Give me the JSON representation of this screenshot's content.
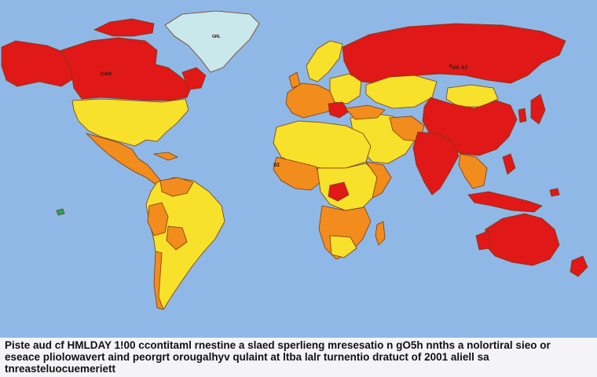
{
  "colors": {
    "ocean": "#8fb8e6",
    "high": "#e01818",
    "medium": "#f28c1c",
    "low": "#f7e12a",
    "none": "#c8e8ec",
    "border": "#7a3a10"
  },
  "labels": {
    "greenland": "ᴳᴿᴸ",
    "canada": "ᴄᴀɴ",
    "russia": "ᴿᴜs ᴀᴛ",
    "small_marker": "ᴅɪ"
  },
  "caption": {
    "line1": "Piste aud cf HMLDAY 1!00 ccontitaml rnestine a slaed sperlieng mresesatio n gO5h nnths a nolortiral sieo or",
    "line2": "eseace pliolowavert aind peorgrt orougalhyv qulaint at ltba lalr turnentio dratuct of 2001 aliell sa",
    "line3": "tnreasteluocuemeriett"
  }
}
